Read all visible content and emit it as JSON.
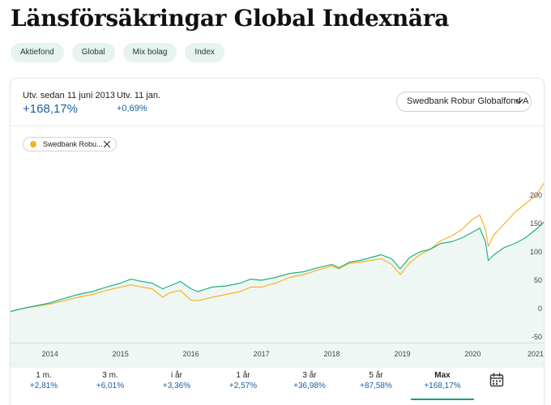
{
  "page": {
    "title": "Länsförsäkringar Global Indexnära",
    "tags": [
      "Aktiefond",
      "Global",
      "Mix bolag",
      "Index"
    ]
  },
  "stats": {
    "since_label": "Utv. sedan 11 juni 2013",
    "since_value": "+168,17%",
    "day_label": "Utv. 11 jan.",
    "day_value": "+0,69%"
  },
  "compare": {
    "selected": "Swedbank Robur Globalfond A",
    "chip_label": "Swedbank Robu..."
  },
  "colors": {
    "fund_line": "#1fb184",
    "compare_line": "#f5b324",
    "fill": "#eef7f3",
    "selected_underline": "#10a37f",
    "value_text": "#1a5ea8"
  },
  "chart_data": {
    "type": "line",
    "x_ticks": [
      "2014",
      "2015",
      "2016",
      "2017",
      "2018",
      "2019",
      "2020",
      "2021"
    ],
    "y_ticks": [
      "200",
      "150",
      "100",
      "50",
      "0",
      "-50"
    ],
    "ylim": [
      -50,
      220
    ],
    "x_range": [
      2013.44,
      2021.03
    ],
    "series": [
      {
        "name": "Länsförsäkringar Global Indexnära",
        "color": "#1fb184",
        "x": [
          2013.44,
          2013.6,
          2013.8,
          2014.0,
          2014.2,
          2014.4,
          2014.6,
          2014.8,
          2015.0,
          2015.15,
          2015.3,
          2015.45,
          2015.6,
          2015.7,
          2015.85,
          2016.0,
          2016.1,
          2016.3,
          2016.5,
          2016.7,
          2016.85,
          2017.0,
          2017.2,
          2017.4,
          2017.6,
          2017.8,
          2018.0,
          2018.1,
          2018.25,
          2018.4,
          2018.55,
          2018.7,
          2018.85,
          2018.97,
          2019.1,
          2019.25,
          2019.4,
          2019.55,
          2019.7,
          2019.85,
          2020.0,
          2020.1,
          2020.18,
          2020.22,
          2020.3,
          2020.45,
          2020.6,
          2020.75,
          2020.9,
          2021.03
        ],
        "y": [
          -5,
          0,
          5,
          10,
          18,
          25,
          30,
          38,
          45,
          52,
          48,
          45,
          35,
          40,
          48,
          35,
          30,
          38,
          40,
          45,
          52,
          50,
          55,
          62,
          65,
          72,
          78,
          72,
          82,
          85,
          90,
          95,
          88,
          70,
          90,
          100,
          105,
          115,
          118,
          125,
          135,
          142,
          118,
          85,
          95,
          108,
          115,
          125,
          140,
          155
        ]
      },
      {
        "name": "Swedbank Robur Globalfond A",
        "color": "#f5b324",
        "x": [
          2013.44,
          2013.6,
          2013.8,
          2014.0,
          2014.2,
          2014.4,
          2014.6,
          2014.8,
          2015.0,
          2015.15,
          2015.3,
          2015.45,
          2015.6,
          2015.7,
          2015.85,
          2016.0,
          2016.1,
          2016.3,
          2016.5,
          2016.7,
          2016.85,
          2017.0,
          2017.2,
          2017.4,
          2017.6,
          2017.8,
          2018.0,
          2018.1,
          2018.25,
          2018.4,
          2018.55,
          2018.7,
          2018.85,
          2018.97,
          2019.1,
          2019.25,
          2019.4,
          2019.55,
          2019.7,
          2019.85,
          2020.0,
          2020.1,
          2020.18,
          2020.22,
          2020.3,
          2020.45,
          2020.6,
          2020.75,
          2020.9,
          2021.03
        ],
        "y": [
          -5,
          0,
          4,
          8,
          14,
          20,
          25,
          32,
          38,
          42,
          38,
          35,
          20,
          28,
          32,
          15,
          14,
          20,
          25,
          30,
          38,
          38,
          45,
          55,
          60,
          68,
          75,
          70,
          80,
          82,
          85,
          88,
          78,
          60,
          80,
          95,
          105,
          120,
          128,
          140,
          158,
          165,
          140,
          110,
          130,
          150,
          170,
          185,
          200,
          225
        ]
      }
    ]
  },
  "periods": [
    {
      "label": "1 m.",
      "value": "+2,81%",
      "active": false
    },
    {
      "label": "3 m.",
      "value": "+6,01%",
      "active": false
    },
    {
      "label": "i år",
      "value": "+3,36%",
      "active": false
    },
    {
      "label": "1 år",
      "value": "+2,57%",
      "active": false
    },
    {
      "label": "3 år",
      "value": "+36,98%",
      "active": false
    },
    {
      "label": "5 år",
      "value": "+87,58%",
      "active": false
    },
    {
      "label": "Max",
      "value": "+168,17%",
      "active": true
    }
  ],
  "icons": {
    "calendar": "calendar-icon",
    "chevron": "chevron-down-icon",
    "close": "close-icon"
  }
}
